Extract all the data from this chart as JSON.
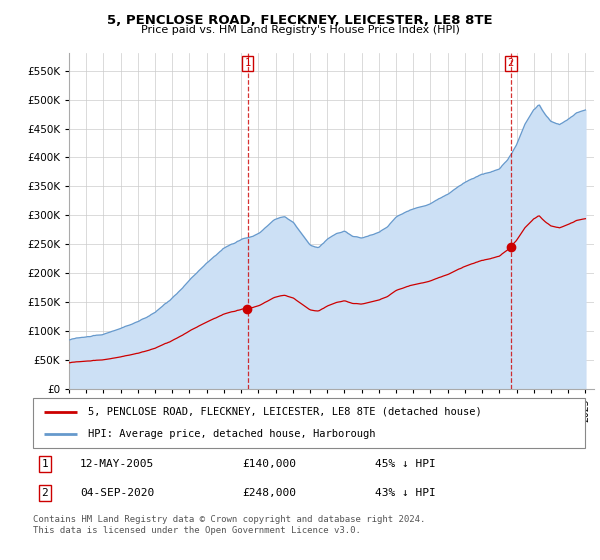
{
  "title": "5, PENCLOSE ROAD, FLECKNEY, LEICESTER, LE8 8TE",
  "subtitle": "Price paid vs. HM Land Registry's House Price Index (HPI)",
  "ylim": [
    0,
    580000
  ],
  "yticks": [
    0,
    50000,
    100000,
    150000,
    200000,
    250000,
    300000,
    350000,
    400000,
    450000,
    500000,
    550000
  ],
  "sale1_date": 2005.37,
  "sale1_price": 140000,
  "sale2_date": 2020.67,
  "sale2_price": 248000,
  "hpi_color": "#6699cc",
  "hpi_fill_color": "#cce0f5",
  "sale_color": "#cc0000",
  "legend_entry1": "5, PENCLOSE ROAD, FLECKNEY, LEICESTER, LE8 8TE (detached house)",
  "legend_entry2": "HPI: Average price, detached house, Harborough",
  "annotation1_date": "12-MAY-2005",
  "annotation1_price": "£140,000",
  "annotation1_pct": "45% ↓ HPI",
  "annotation2_date": "04-SEP-2020",
  "annotation2_price": "£248,000",
  "annotation2_pct": "43% ↓ HPI",
  "footnote1": "Contains HM Land Registry data © Crown copyright and database right 2024.",
  "footnote2": "This data is licensed under the Open Government Licence v3.0.",
  "background_color": "#ffffff",
  "grid_color": "#cccccc"
}
